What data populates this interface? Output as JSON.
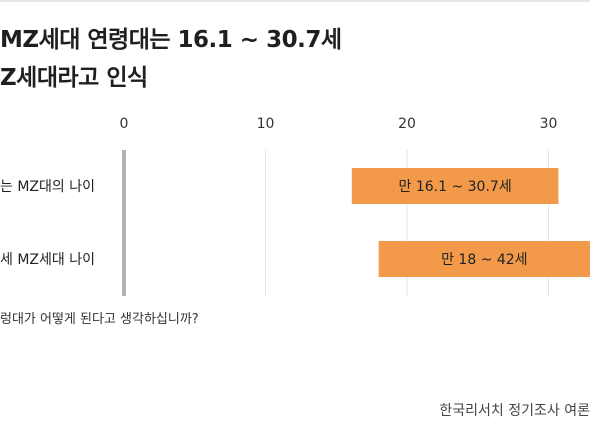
{
  "title": {
    "line1": "MZ세대 연령대는 16.1 ~ 30.7세",
    "line2": "Z세대라고 인식"
  },
  "question": "렁대가 어떻게 된다고 생각하십니까?",
  "source": "한국리서치 정기조사 여론",
  "colors": {
    "bar": "#f29a49",
    "axis": "#b3b3b3",
    "grid": "#e6e6e6",
    "text": "#222222"
  },
  "chart_data": {
    "type": "bar",
    "orientation": "horizontal-range",
    "x_ticks": [
      0,
      10,
      20,
      30
    ],
    "xlim": [
      0,
      33.5
    ],
    "grid": true,
    "categories": [
      "는 MZ대의 나이",
      "세 MZ세대 나이"
    ],
    "ranges": [
      [
        16.1,
        30.7
      ],
      [
        18,
        42
      ]
    ],
    "labels": [
      "만 16.1 ~ 30.7세",
      "만 18 ~ 42세"
    ]
  }
}
